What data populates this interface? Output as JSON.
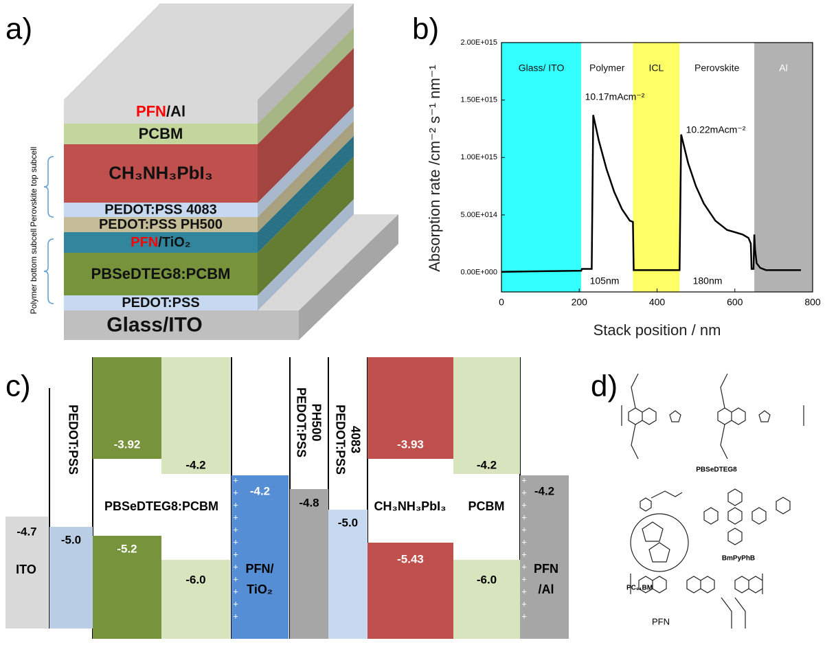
{
  "panel_labels": [
    "a)",
    "b)",
    "c)",
    "d)"
  ],
  "stack": {
    "highlight_color": "#ff0000",
    "layers": [
      {
        "label": "Glass/ITO",
        "color": "#bfbfbf"
      },
      {
        "label": "PEDOT:PSS",
        "color": "#c6d9f1"
      },
      {
        "label": "PBSeDTEG8:PCBM",
        "color": "#77933c"
      },
      {
        "highlight": "PFN",
        "label": "/TiO₂",
        "color": "#31859c"
      },
      {
        "label": "PEDOT:PSS PH500",
        "color": "#c4bd97"
      },
      {
        "label": "PEDOT:PSS 4083",
        "color": "#c6d9f1"
      },
      {
        "label": "CH₃NH₃PbI₃",
        "color": "#c0504d"
      },
      {
        "label": "PCBM",
        "color": "#c3d69b"
      },
      {
        "highlight": "PFN",
        "label": "/Al",
        "color": "#d9d9d9"
      }
    ],
    "subcells": [
      "Polymer bottom subcell",
      "Perovskite top subcell"
    ]
  },
  "chart_data": {
    "type": "line",
    "color": "#000000",
    "x_label": "Stack position / nm",
    "y_label": "Absorption rate /cm⁻² s⁻¹ nm⁻¹",
    "xlim": [
      0,
      800
    ],
    "xticks": [
      0,
      200,
      400,
      600,
      800
    ],
    "ylim": [
      -170000000000000.0,
      2000000000000000.0
    ],
    "yticks": [
      {
        "value": 0,
        "label": "0.00E+000"
      },
      {
        "value": 500000000000000.0,
        "label": "5.00E+014"
      },
      {
        "value": 1000000000000000.0,
        "label": "1.00E+015"
      },
      {
        "value": 1500000000000000.0,
        "label": "1.50E+015"
      },
      {
        "value": 2000000000000000.0,
        "label": "2.00E+015"
      }
    ],
    "bands": [
      {
        "label": "Glass/ ITO",
        "start": 0,
        "end": 205,
        "color": "#33ffff"
      },
      {
        "label": "Polymer",
        "start": 205,
        "end": 338,
        "color": "#ffffff"
      },
      {
        "label": "ICL",
        "start": 338,
        "end": 458,
        "color": "#ffff66"
      },
      {
        "label": "Perovskite",
        "start": 458,
        "end": 650,
        "color": "#ffffff"
      },
      {
        "label": "Al",
        "start": 650,
        "end": 800,
        "color": "#b2b2b2"
      }
    ],
    "annotations": [
      "10.17mAcm⁻²",
      "10.22mAcm⁻²",
      "105nm",
      "180nm"
    ],
    "x": [
      0,
      100,
      205,
      207,
      232,
      236,
      250,
      270,
      290,
      310,
      330,
      338,
      340,
      400,
      458,
      462,
      480,
      500,
      520,
      550,
      580,
      600,
      620,
      635,
      641,
      643,
      648,
      650,
      652,
      656,
      665,
      680,
      720,
      770
    ],
    "values": [
      5000000000000.0,
      10000000000000.0,
      15000000000000.0,
      30000000000000.0,
      30000000000000.0,
      1370000000000000.0,
      1150000000000000.0,
      900000000000000.0,
      700000000000000.0,
      550000000000000.0,
      450000000000000.0,
      440000000000000.0,
      20000000000000.0,
      20000000000000.0,
      20000000000000.0,
      1200000000000000.0,
      950000000000000.0,
      750000000000000.0,
      600000000000000.0,
      450000000000000.0,
      370000000000000.0,
      350000000000000.0,
      330000000000000.0,
      300000000000000.0,
      250000000000000.0,
      30000000000000.0,
      30000000000000.0,
      330000000000000.0,
      200000000000000.0,
      80000000000000.0,
      40000000000000.0,
      20000000000000.0,
      20000000000000.0,
      20000000000000.0
    ]
  },
  "energy": {
    "columns": [
      {
        "name": [
          "ITO"
        ],
        "levels": [
          "-4.7"
        ],
        "color": "#d9d9d9"
      },
      {
        "name": [
          "PEDOT:PSS"
        ],
        "levels": [
          "-5.0"
        ],
        "color": "#b9cde5"
      },
      {
        "name": [
          "PBSeDTEG8:PCBM"
        ],
        "levels": [
          "-3.92",
          "-5.2"
        ],
        "color": "#77933c"
      },
      {
        "levels": [
          "-4.2",
          "-6.0"
        ],
        "color": "#d7e4bd"
      },
      {
        "name": [
          "PFN/",
          "TiO₂"
        ],
        "levels": [
          "-4.2"
        ],
        "color": "#558ed5"
      },
      {
        "name": [
          "PEDOT:PSS",
          "PH500"
        ],
        "levels": [
          "-4.8"
        ],
        "color": "#a6a6a6"
      },
      {
        "name": [
          "PEDOT:PSS",
          "4083"
        ],
        "levels": [
          "-5.0"
        ],
        "color": "#c6d9f1"
      },
      {
        "name": [
          "CH₃NH₃PbI₃"
        ],
        "levels": [
          "-3.93",
          "-5.43"
        ],
        "color": "#c0504d"
      },
      {
        "name": [
          "PCBM"
        ],
        "levels": [
          "-4.2",
          "-6.0"
        ],
        "color": "#d7e4bd"
      },
      {
        "name": [
          "PFN",
          "/Al"
        ],
        "levels": [
          "-4.2"
        ],
        "color": "#a6a6a6"
      }
    ]
  },
  "molecules": [
    "PBSeDTEG8",
    "PC₆₁BM",
    "BmPyPhB",
    "PFN"
  ]
}
